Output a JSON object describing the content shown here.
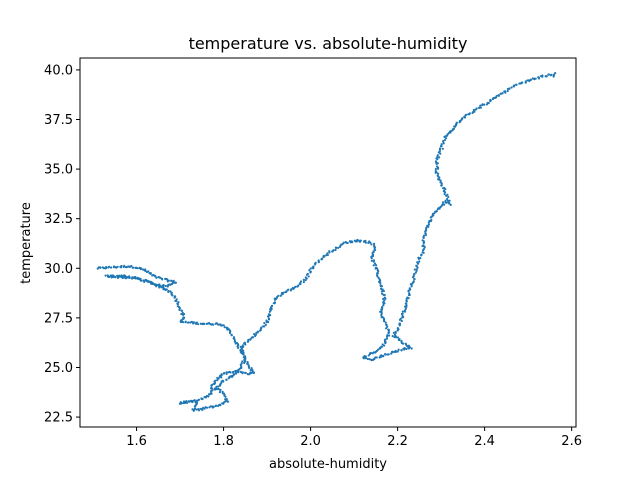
{
  "chart_data": {
    "type": "scatter",
    "title": "temperature vs. absolute-humidity",
    "xlabel": "absolute-humidity",
    "ylabel": "temperature",
    "xlim": [
      1.47,
      2.61
    ],
    "ylim": [
      22.0,
      40.6
    ],
    "xticks": [
      "1.6",
      "1.8",
      "2.0",
      "2.2",
      "2.4",
      "2.6"
    ],
    "yticks": [
      "22.5",
      "25.0",
      "27.5",
      "30.0",
      "32.5",
      "35.0",
      "37.5",
      "40.0"
    ],
    "grid": false,
    "legend": "none",
    "marker_color": "#1f77b4",
    "path": [
      [
        1.51,
        30.0
      ],
      [
        1.54,
        30.05
      ],
      [
        1.58,
        30.1
      ],
      [
        1.6,
        30.05
      ],
      [
        1.62,
        29.9
      ],
      [
        1.64,
        29.6
      ],
      [
        1.67,
        29.4
      ],
      [
        1.69,
        29.3
      ],
      [
        1.67,
        29.1
      ],
      [
        1.64,
        29.2
      ],
      [
        1.62,
        29.4
      ],
      [
        1.6,
        29.5
      ],
      [
        1.57,
        29.6
      ],
      [
        1.53,
        29.6
      ],
      [
        1.6,
        29.5
      ],
      [
        1.64,
        29.2
      ],
      [
        1.66,
        29.0
      ],
      [
        1.68,
        28.8
      ],
      [
        1.69,
        28.5
      ],
      [
        1.7,
        28.0
      ],
      [
        1.71,
        27.5
      ],
      [
        1.7,
        27.3
      ],
      [
        1.73,
        27.25
      ],
      [
        1.76,
        27.2
      ],
      [
        1.79,
        27.2
      ],
      [
        1.81,
        27.0
      ],
      [
        1.82,
        26.6
      ],
      [
        1.83,
        26.2
      ],
      [
        1.84,
        25.8
      ],
      [
        1.85,
        25.4
      ],
      [
        1.86,
        25.0
      ],
      [
        1.87,
        24.7
      ],
      [
        1.85,
        24.7
      ],
      [
        1.83,
        24.8
      ],
      [
        1.8,
        24.7
      ],
      [
        1.78,
        24.3
      ],
      [
        1.77,
        24.0
      ],
      [
        1.79,
        23.9
      ],
      [
        1.8,
        23.6
      ],
      [
        1.81,
        23.3
      ],
      [
        1.79,
        23.1
      ],
      [
        1.77,
        23.0
      ],
      [
        1.75,
        22.9
      ],
      [
        1.73,
        22.85
      ],
      [
        1.74,
        23.3
      ],
      [
        1.72,
        23.3
      ],
      [
        1.7,
        23.2
      ],
      [
        1.73,
        23.3
      ],
      [
        1.76,
        23.5
      ],
      [
        1.78,
        23.9
      ],
      [
        1.8,
        24.3
      ],
      [
        1.82,
        24.6
      ],
      [
        1.84,
        25.0
      ],
      [
        1.85,
        25.5
      ],
      [
        1.84,
        26.0
      ],
      [
        1.86,
        26.4
      ],
      [
        1.88,
        26.8
      ],
      [
        1.9,
        27.3
      ],
      [
        1.91,
        27.9
      ],
      [
        1.92,
        28.5
      ],
      [
        1.94,
        28.8
      ],
      [
        1.97,
        29.1
      ],
      [
        1.99,
        29.5
      ],
      [
        2.0,
        29.9
      ],
      [
        2.02,
        30.4
      ],
      [
        2.05,
        30.9
      ],
      [
        2.08,
        31.3
      ],
      [
        2.11,
        31.4
      ],
      [
        2.14,
        31.3
      ],
      [
        2.15,
        31.0
      ],
      [
        2.14,
        30.6
      ],
      [
        2.15,
        30.0
      ],
      [
        2.16,
        29.3
      ],
      [
        2.17,
        28.5
      ],
      [
        2.16,
        27.8
      ],
      [
        2.17,
        27.3
      ],
      [
        2.18,
        26.7
      ],
      [
        2.17,
        26.2
      ],
      [
        2.15,
        25.8
      ],
      [
        2.12,
        25.5
      ],
      [
        2.14,
        25.4
      ],
      [
        2.18,
        25.7
      ],
      [
        2.21,
        25.9
      ],
      [
        2.23,
        26.0
      ],
      [
        2.21,
        26.3
      ],
      [
        2.19,
        26.6
      ],
      [
        2.2,
        26.9
      ],
      [
        2.21,
        27.5
      ],
      [
        2.22,
        28.2
      ],
      [
        2.23,
        29.0
      ],
      [
        2.24,
        29.8
      ],
      [
        2.25,
        30.5
      ],
      [
        2.26,
        30.9
      ],
      [
        2.26,
        31.5
      ],
      [
        2.27,
        32.1
      ],
      [
        2.28,
        32.7
      ],
      [
        2.3,
        33.1
      ],
      [
        2.31,
        33.4
      ],
      [
        2.32,
        33.2
      ],
      [
        2.31,
        33.8
      ],
      [
        2.3,
        34.3
      ],
      [
        2.29,
        34.8
      ],
      [
        2.29,
        35.4
      ],
      [
        2.3,
        36.0
      ],
      [
        2.31,
        36.6
      ],
      [
        2.33,
        37.1
      ],
      [
        2.35,
        37.6
      ],
      [
        2.38,
        38.0
      ],
      [
        2.41,
        38.4
      ],
      [
        2.44,
        38.8
      ],
      [
        2.47,
        39.2
      ],
      [
        2.5,
        39.45
      ],
      [
        2.53,
        39.65
      ],
      [
        2.56,
        39.8
      ],
      [
        2.56,
        39.65
      ]
    ]
  }
}
